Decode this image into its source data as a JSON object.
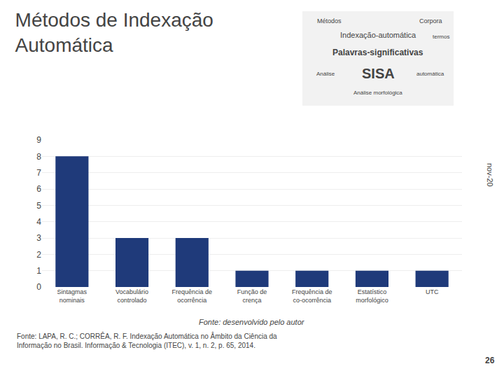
{
  "chart_data": {
    "type": "bar",
    "title": "Métodos de Indexação\nAutomática",
    "categories": [
      "Sintagmas\nnominais",
      "Vocabulário\ncontrolado",
      "Frequência de\nocorrência",
      "Função de\ncrença",
      "Frequência de\nco-ocorrência",
      "Estatístico\nmorfológico",
      "UTC"
    ],
    "values": [
      8,
      3,
      3,
      1,
      1,
      1,
      1
    ],
    "color": "#1f3a7a",
    "ylim": [
      0,
      9
    ],
    "yticks": [
      0,
      1,
      2,
      3,
      4,
      5,
      6,
      7,
      8,
      9
    ],
    "grid": true,
    "annotations": [
      "Fonte: desenvolvido pelo autor",
      "Fonte: LAPA, R. C.; CORRÊA, R. F. Indexação Automática no Âmbito da Ciência da\nInformação no Brasil. Informação & Tecnologia (ITEC), v. 1, n. 2, p. 65, 2014.",
      "nov-20",
      "26",
      "Palavras-significativas",
      "SISA",
      "Indexação-automática",
      "Métodos",
      "Análise",
      "Corpora",
      "termos",
      "automática",
      "Análise morfológica"
    ]
  }
}
